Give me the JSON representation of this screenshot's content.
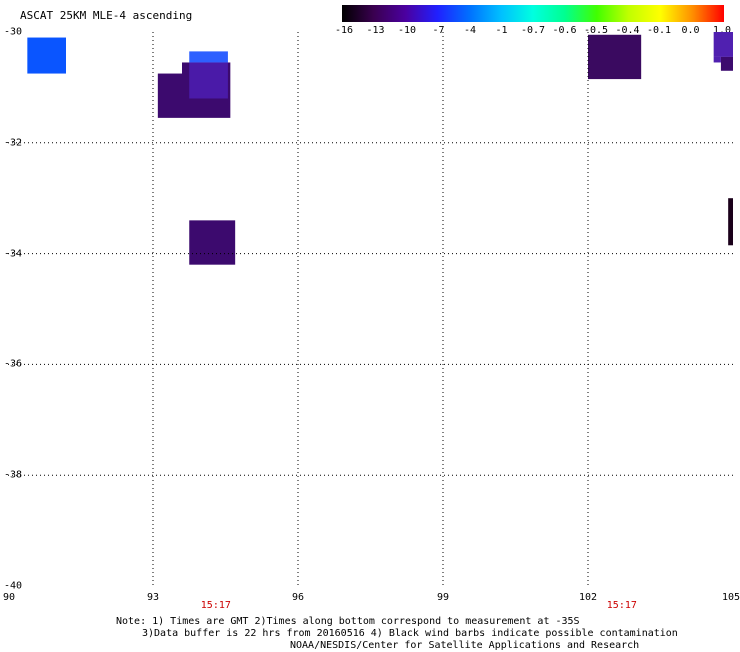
{
  "title": "ASCAT 25KM MLE-4 ascending",
  "colorbar": {
    "labels": [
      "-16",
      "-13",
      "-10",
      "-7",
      "-4",
      "-1",
      "-0.7",
      "-0.6",
      "-0.5",
      "-0.4",
      "-0.1",
      "0.0",
      "1.0"
    ],
    "colors": [
      "#000000",
      "#3a0050",
      "#4b00a0",
      "#2020ff",
      "#0070ff",
      "#00c0ff",
      "#00ffe0",
      "#00ff90",
      "#40ff00",
      "#c0ff00",
      "#ffff00",
      "#ff9000",
      "#ff0000"
    ]
  },
  "map": {
    "lon_range": [
      90,
      105
    ],
    "lat_range": [
      -40,
      -30
    ],
    "lat_ticks": [
      "-30",
      "-32",
      "-34",
      "-36",
      "-38",
      "-40"
    ],
    "lon_ticks": [
      "90",
      "93",
      "96",
      "99",
      "102",
      "105"
    ],
    "time_labels": [
      {
        "text": "15:17",
        "lon": 94.3
      },
      {
        "text": "15:17",
        "lon": 102.7
      }
    ],
    "time_color": "#cc0000",
    "cells": [
      {
        "lon0": 90.4,
        "lon1": 91.2,
        "lat0": -30.1,
        "lat1": -30.75,
        "color": "#0a55ff"
      },
      {
        "lon0": 93.1,
        "lon1": 93.6,
        "lat0": -30.75,
        "lat1": -31.55,
        "color": "#3c0a6e"
      },
      {
        "lon0": 93.6,
        "lon1": 94.6,
        "lat0": -30.55,
        "lat1": -31.55,
        "color": "#3c0a6e"
      },
      {
        "lon0": 93.75,
        "lon1": 94.55,
        "lat0": -30.35,
        "lat1": -30.55,
        "color": "#2e60ff"
      },
      {
        "lon0": 93.75,
        "lon1": 94.55,
        "lat0": -30.55,
        "lat1": -31.2,
        "color": "#4a1aa8"
      },
      {
        "lon0": 93.75,
        "lon1": 94.7,
        "lat0": -33.4,
        "lat1": -34.2,
        "color": "#3c0a6e"
      },
      {
        "lon0": 102.0,
        "lon1": 103.1,
        "lat0": -30.05,
        "lat1": -30.85,
        "color": "#3a0a60"
      },
      {
        "lon0": 104.6,
        "lon1": 105.0,
        "lat0": -30.0,
        "lat1": -30.45,
        "color": "#5020b0"
      },
      {
        "lon0": 104.6,
        "lon1": 104.75,
        "lat0": -30.45,
        "lat1": -30.55,
        "color": "#5020b0"
      },
      {
        "lon0": 104.75,
        "lon1": 105.0,
        "lat0": -30.45,
        "lat1": -30.7,
        "color": "#3c0a6e"
      },
      {
        "lon0": 104.9,
        "lon1": 105.0,
        "lat0": -33.0,
        "lat1": -33.85,
        "color": "#1a001a"
      }
    ]
  },
  "notes": {
    "line1": "Note: 1) Times are GMT 2)Times along bottom correspond to measurement at -35S",
    "line2": "3)Data buffer is 22 hrs from 20160516 4) Black wind barbs indicate possible contamination",
    "line3": "NOAA/NESDIS/Center for Satellite Applications and Research"
  }
}
